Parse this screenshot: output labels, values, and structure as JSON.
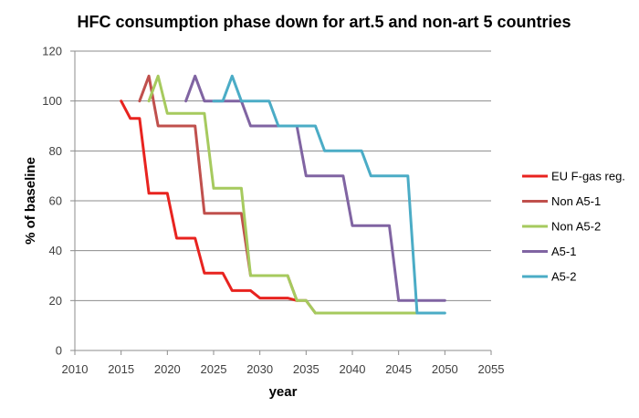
{
  "chart_data": {
    "type": "line",
    "title": "HFC consumption phase down for art.5 and non-art 5 countries",
    "xlabel": "year",
    "ylabel": "% of baseline",
    "xlim": [
      2010,
      2055
    ],
    "ylim": [
      0,
      120
    ],
    "x_ticks": [
      "2010",
      "2015",
      "2020",
      "2025",
      "2030",
      "2035",
      "2040",
      "2045",
      "2050",
      "2055"
    ],
    "y_ticks": [
      "0",
      "20",
      "40",
      "60",
      "80",
      "100",
      "120"
    ],
    "grid": "horizontal",
    "legend_position": "right",
    "series": [
      {
        "name": "EU F-gas reg.",
        "color": "#e8231f",
        "x": [
          2015,
          2016,
          2017,
          2018,
          2019,
          2020,
          2021,
          2022,
          2023,
          2024,
          2025,
          2026,
          2027,
          2028,
          2029,
          2030,
          2031,
          2032,
          2033,
          2034
        ],
        "y": [
          100,
          93,
          93,
          63,
          63,
          63,
          45,
          45,
          45,
          31,
          31,
          31,
          24,
          24,
          24,
          21,
          21,
          21,
          21,
          20
        ]
      },
      {
        "name": "Non A5-1",
        "color": "#c0504d",
        "x": [
          2017,
          2018,
          2019,
          2020,
          2021,
          2022,
          2023,
          2024,
          2025,
          2026,
          2027,
          2028,
          2029,
          2030,
          2031,
          2032,
          2033,
          2034,
          2035,
          2036
        ],
        "y": [
          100,
          110,
          90,
          90,
          90,
          90,
          90,
          55,
          55,
          55,
          55,
          55,
          30,
          30,
          30,
          30,
          30,
          20,
          20,
          15
        ]
      },
      {
        "name": "Non A5-2",
        "color": "#a6ca5e",
        "x": [
          2018,
          2019,
          2020,
          2021,
          2022,
          2023,
          2024,
          2025,
          2026,
          2027,
          2028,
          2029,
          2030,
          2031,
          2032,
          2033,
          2034,
          2035,
          2036,
          2040,
          2045,
          2047
        ],
        "y": [
          100,
          110,
          95,
          95,
          95,
          95,
          95,
          65,
          65,
          65,
          65,
          30,
          30,
          30,
          30,
          30,
          20,
          20,
          15,
          15,
          15,
          15
        ]
      },
      {
        "name": "A5-1",
        "color": "#8064a2",
        "x": [
          2022,
          2023,
          2024,
          2025,
          2026,
          2027,
          2028,
          2029,
          2030,
          2031,
          2032,
          2033,
          2034,
          2035,
          2036,
          2037,
          2038,
          2039,
          2040,
          2041,
          2042,
          2043,
          2044,
          2045,
          2046,
          2047,
          2048,
          2049,
          2050
        ],
        "y": [
          100,
          110,
          100,
          100,
          100,
          100,
          100,
          90,
          90,
          90,
          90,
          90,
          90,
          70,
          70,
          70,
          70,
          70,
          50,
          50,
          50,
          50,
          50,
          20,
          20,
          20,
          20,
          20,
          20
        ]
      },
      {
        "name": "A5-2",
        "color": "#4bacc6",
        "x": [
          2025,
          2026,
          2027,
          2028,
          2029,
          2030,
          2031,
          2032,
          2033,
          2034,
          2035,
          2036,
          2037,
          2038,
          2039,
          2040,
          2041,
          2042,
          2043,
          2044,
          2045,
          2046,
          2047,
          2048,
          2049,
          2050
        ],
        "y": [
          100,
          100,
          110,
          100,
          100,
          100,
          100,
          90,
          90,
          90,
          90,
          90,
          80,
          80,
          80,
          80,
          80,
          70,
          70,
          70,
          70,
          70,
          15,
          15,
          15,
          15
        ]
      }
    ]
  }
}
